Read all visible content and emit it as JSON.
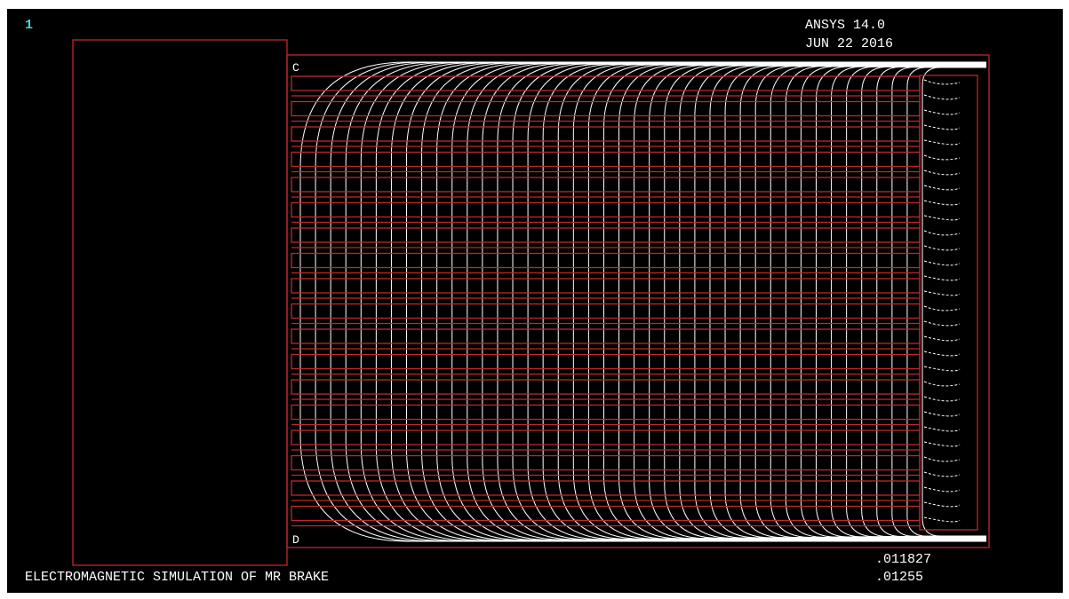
{
  "window": {
    "number": "1",
    "product": "ANSYS 14.0",
    "date": "JUN 22 2016",
    "title": "ELECTROMAGNETIC SIMULATION OF MR BRAKE"
  },
  "contour": {
    "marker_top": "C",
    "marker_bottom": "D",
    "legend": [
      ".011827",
      ".01255"
    ]
  }
}
